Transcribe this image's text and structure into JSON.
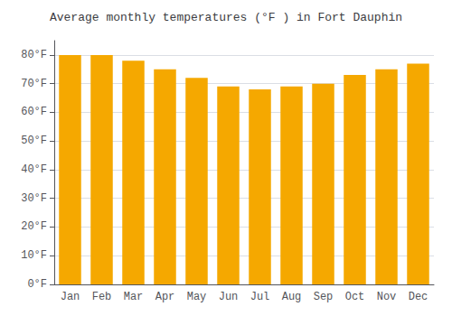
{
  "chart_data": {
    "type": "bar",
    "title": "Average monthly temperatures (°F ) in Fort Dauphin",
    "categories": [
      "Jan",
      "Feb",
      "Mar",
      "Apr",
      "May",
      "Jun",
      "Jul",
      "Aug",
      "Sep",
      "Oct",
      "Nov",
      "Dec"
    ],
    "values": [
      80,
      80,
      78,
      75,
      72,
      69,
      68,
      69,
      70,
      73,
      75,
      77
    ],
    "color": "#F5A800",
    "ylim": [
      0,
      85
    ],
    "yticks": [
      {
        "value": 0,
        "label": "0°F"
      },
      {
        "value": 10,
        "label": "10°F"
      },
      {
        "value": 20,
        "label": "20°F"
      },
      {
        "value": 30,
        "label": "30°F"
      },
      {
        "value": 40,
        "label": "40°F"
      },
      {
        "value": 50,
        "label": "50°F"
      },
      {
        "value": 60,
        "label": "60°F"
      },
      {
        "value": 70,
        "label": "70°F"
      },
      {
        "value": 80,
        "label": "80°F"
      }
    ],
    "grid": true
  }
}
